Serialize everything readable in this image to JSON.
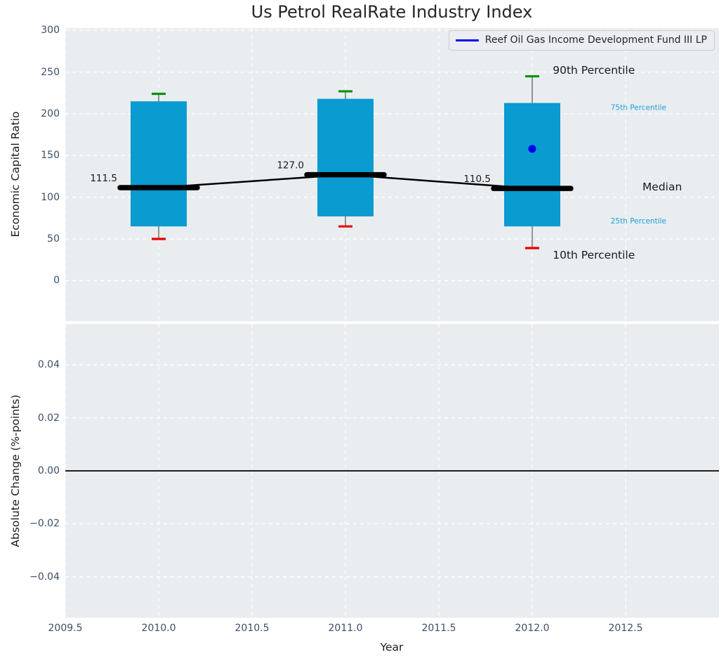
{
  "figure": {
    "title": "Us Petrol RealRate Industry Index",
    "colors": {
      "plot_bg": "#e9edf0",
      "grid": "#ffffff",
      "box_fill": "#0a9bd1",
      "accent_text": "#1e9fd4",
      "whisker": "#6e6e6e",
      "cap_high": "#069306",
      "cap_low": "#ea0000",
      "median_line": "#000000",
      "fund": "#0000ee",
      "tick_text": "#3d4e66",
      "label_text": "#1a1a1a"
    }
  },
  "chart_data": [
    {
      "type": "boxplot",
      "title": "Us Petrol RealRate Industry Index",
      "ylabel": "Economic Capital Ratio",
      "xlim": [
        2009.5,
        2013.0
      ],
      "ylim": [
        -48.6,
        302.8
      ],
      "grid": "white-dashed",
      "legend": {
        "label": "Reef Oil Gas Income Development Fund III LP",
        "position": "upper right"
      },
      "yticks": [
        {
          "label": "0",
          "value": 0
        },
        {
          "label": "50",
          "value": 50
        },
        {
          "label": "100",
          "value": 100
        },
        {
          "label": "150",
          "value": 150
        },
        {
          "label": "200",
          "value": 200
        },
        {
          "label": "250",
          "value": 250
        },
        {
          "label": "300",
          "value": 300
        }
      ],
      "boxes": [
        {
          "year": 2010,
          "p10": 50,
          "p25": 65,
          "median": 111.5,
          "p75": 215,
          "p90": 224,
          "median_label": "111.5"
        },
        {
          "year": 2011,
          "p10": 65,
          "p25": 77,
          "median": 127.0,
          "p75": 218,
          "p90": 227,
          "median_label": "127.0"
        },
        {
          "year": 2012,
          "p10": 39,
          "p25": 65,
          "median": 110.5,
          "p75": 213,
          "p90": 245,
          "median_label": "110.5"
        }
      ],
      "median_series": {
        "x": [
          2010,
          2011,
          2012
        ],
        "values": [
          111.5,
          127.0,
          110.5
        ]
      },
      "fund_point": {
        "year": 2012,
        "value": 158
      },
      "annotations": [
        {
          "text": "90th Percentile",
          "year": 2012.11,
          "value": 252,
          "color": "black",
          "size": "large"
        },
        {
          "text": "75th Percentile",
          "year": 2012.42,
          "value": 207,
          "color": "accent",
          "size": "small"
        },
        {
          "text": "Median",
          "year": 2012.59,
          "value": 112,
          "color": "black",
          "size": "large"
        },
        {
          "text": "25th Percentile",
          "year": 2012.42,
          "value": 71,
          "color": "accent",
          "size": "small"
        },
        {
          "text": "10th Percentile",
          "year": 2012.11,
          "value": 30,
          "color": "black",
          "size": "large"
        }
      ]
    },
    {
      "type": "line",
      "ylabel": "Absolute Change (%-points)",
      "xlabel": "Year",
      "xlim": [
        2009.5,
        2013.0
      ],
      "ylim": [
        -0.0554,
        0.0554
      ],
      "grid": "white-dashed",
      "zero_line": 0.0,
      "series": [],
      "yticks": [
        {
          "label": "0.04",
          "value": 0.04
        },
        {
          "label": "0.02",
          "value": 0.02
        },
        {
          "label": "0.00",
          "value": 0.0
        },
        {
          "label": "−0.02",
          "value": -0.02
        },
        {
          "label": "−0.04",
          "value": -0.04
        }
      ],
      "xticks": [
        {
          "label": "2009.5",
          "value": 2009.5
        },
        {
          "label": "2010.0",
          "value": 2010.0
        },
        {
          "label": "2010.5",
          "value": 2010.5
        },
        {
          "label": "2011.0",
          "value": 2011.0
        },
        {
          "label": "2011.5",
          "value": 2011.5
        },
        {
          "label": "2012.0",
          "value": 2012.0
        },
        {
          "label": "2012.5",
          "value": 2012.5
        }
      ]
    }
  ]
}
